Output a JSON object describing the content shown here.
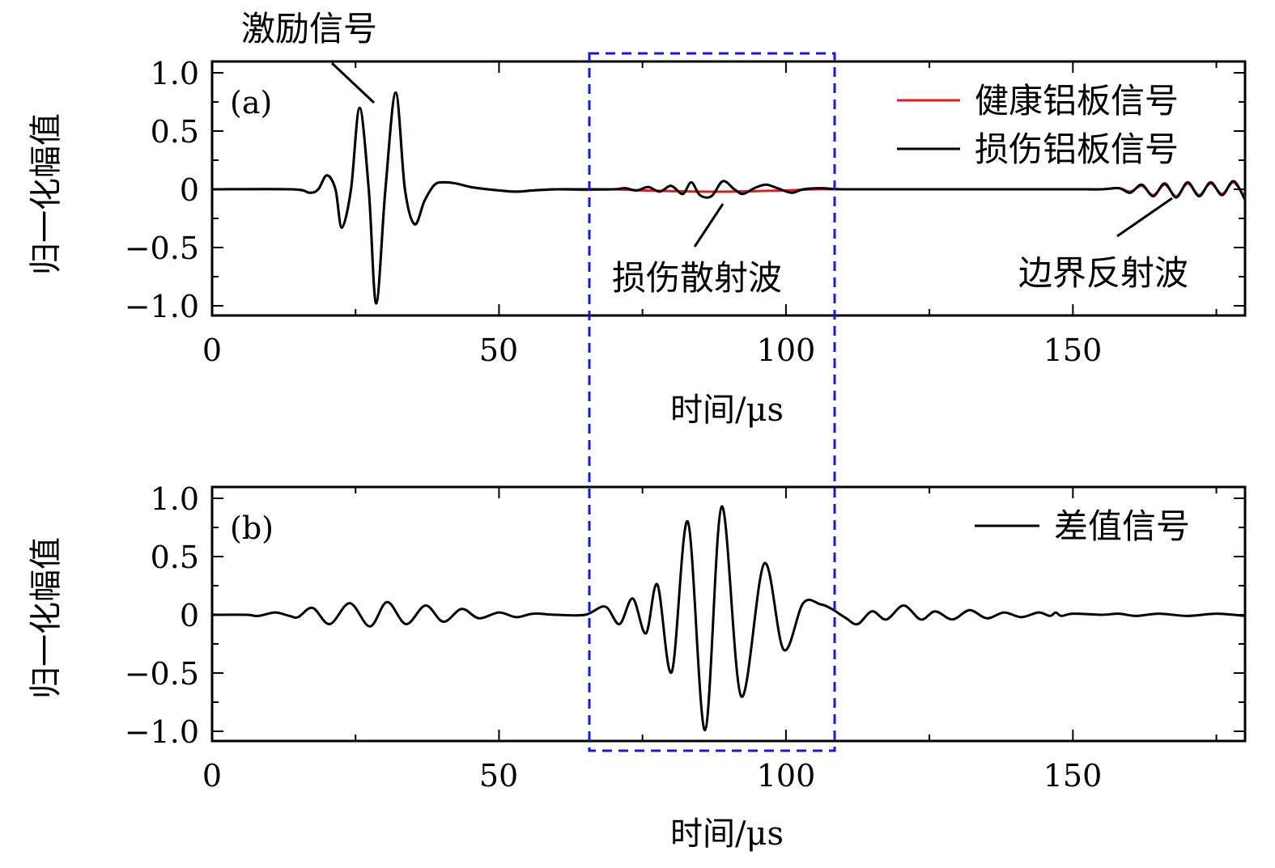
{
  "chart_data": [
    {
      "type": "line",
      "panel_label": "(a)",
      "xlabel": "时间/μs",
      "ylabel": "归一化幅值",
      "xlim": [
        0,
        180
      ],
      "ylim": [
        -1.1,
        1.1
      ],
      "xticks": [
        0,
        50,
        100,
        150
      ],
      "yticks": [
        1.0,
        0.5,
        0,
        -0.5,
        -1.0
      ],
      "ytick_labels": [
        "1.0",
        "0.5",
        "0",
        "−0.5",
        "−1.0"
      ],
      "legend_position": "top-right",
      "series": [
        {
          "name": "健康铝板信号",
          "color": "#d62020",
          "points": [
            [
              0,
              0
            ],
            [
              14,
              0
            ],
            [
              17,
              -0.03
            ],
            [
              18.5,
              0
            ],
            [
              20.0,
              0.12
            ],
            [
              21.5,
              0
            ],
            [
              22.6,
              -0.33
            ],
            [
              24.2,
              0
            ],
            [
              25.7,
              0.7
            ],
            [
              27.3,
              0
            ],
            [
              28.6,
              -0.98
            ],
            [
              30.2,
              0
            ],
            [
              32.0,
              0.83
            ],
            [
              33.6,
              0
            ],
            [
              35.3,
              -0.3
            ],
            [
              37.0,
              -0.1
            ],
            [
              38.8,
              0.04
            ],
            [
              40.5,
              0.06
            ],
            [
              42.5,
              0.05
            ],
            [
              45,
              0.02
            ],
            [
              48,
              0
            ],
            [
              50,
              -0.01
            ],
            [
              53,
              -0.02
            ],
            [
              56,
              -0.01
            ],
            [
              60,
              0
            ],
            [
              65,
              -0.005
            ],
            [
              70,
              0
            ],
            [
              75,
              -0.01
            ],
            [
              80,
              -0.015
            ],
            [
              85,
              -0.02
            ],
            [
              90,
              -0.02
            ],
            [
              95,
              -0.015
            ],
            [
              100,
              -0.01
            ],
            [
              105,
              0
            ],
            [
              110,
              0
            ],
            [
              120,
              0
            ],
            [
              130,
              0
            ],
            [
              140,
              0
            ],
            [
              150,
              0
            ],
            [
              155,
              0
            ],
            [
              158,
              0.01
            ],
            [
              160,
              -0.02
            ],
            [
              162,
              0.03
            ],
            [
              164,
              -0.05
            ],
            [
              166,
              0.04
            ],
            [
              168,
              -0.06
            ],
            [
              170,
              0.05
            ],
            [
              172,
              -0.05
            ],
            [
              174,
              0.05
            ],
            [
              176,
              -0.04
            ],
            [
              178,
              0.06
            ],
            [
              180,
              -0.08
            ]
          ]
        },
        {
          "name": "损伤铝板信号",
          "color": "#000000",
          "points": [
            [
              0,
              0
            ],
            [
              14,
              0
            ],
            [
              17,
              -0.03
            ],
            [
              18.5,
              0
            ],
            [
              20.0,
              0.12
            ],
            [
              21.5,
              0
            ],
            [
              22.6,
              -0.33
            ],
            [
              24.2,
              0
            ],
            [
              25.7,
              0.7
            ],
            [
              27.3,
              0
            ],
            [
              28.6,
              -0.98
            ],
            [
              30.2,
              0
            ],
            [
              32.0,
              0.83
            ],
            [
              33.6,
              0
            ],
            [
              35.3,
              -0.3
            ],
            [
              37.0,
              -0.1
            ],
            [
              38.8,
              0.04
            ],
            [
              40.5,
              0.06
            ],
            [
              42.5,
              0.05
            ],
            [
              45,
              0.02
            ],
            [
              48,
              0
            ],
            [
              50,
              -0.01
            ],
            [
              53,
              -0.02
            ],
            [
              56,
              -0.01
            ],
            [
              60,
              0
            ],
            [
              65,
              0
            ],
            [
              70,
              0
            ],
            [
              72,
              0.01
            ],
            [
              74,
              -0.01
            ],
            [
              76,
              0.02
            ],
            [
              78,
              -0.02
            ],
            [
              80,
              0.03
            ],
            [
              82,
              -0.04
            ],
            [
              83.5,
              0.06
            ],
            [
              85,
              -0.05
            ],
            [
              87,
              -0.06
            ],
            [
              89,
              0.07
            ],
            [
              91,
              0
            ],
            [
              92.5,
              -0.04
            ],
            [
              94.5,
              0.01
            ],
            [
              96.5,
              0.04
            ],
            [
              98.5,
              0.01
            ],
            [
              101,
              -0.03
            ],
            [
              103,
              0
            ],
            [
              106,
              0.01
            ],
            [
              110,
              0
            ],
            [
              120,
              0
            ],
            [
              130,
              0
            ],
            [
              140,
              0
            ],
            [
              150,
              0
            ],
            [
              155,
              0
            ],
            [
              158,
              0.01
            ],
            [
              160,
              -0.03
            ],
            [
              162,
              0.04
            ],
            [
              164,
              -0.06
            ],
            [
              166,
              0.05
            ],
            [
              168,
              -0.07
            ],
            [
              170,
              0.06
            ],
            [
              172,
              -0.06
            ],
            [
              174,
              0.06
            ],
            [
              176,
              -0.05
            ],
            [
              178,
              0.07
            ],
            [
              180,
              -0.09
            ]
          ]
        }
      ],
      "annotations": [
        "激励信号",
        "损伤散射波",
        "边界反射波"
      ]
    },
    {
      "type": "line",
      "panel_label": "(b)",
      "xlabel": "时间/μs",
      "ylabel": "归一化幅值",
      "xlim": [
        0,
        180
      ],
      "ylim": [
        -1.1,
        1.1
      ],
      "xticks": [
        0,
        50,
        100,
        150
      ],
      "yticks": [
        1.0,
        0.5,
        0,
        -0.5,
        -1.0
      ],
      "ytick_labels": [
        "1.0",
        "0.5",
        "0",
        "−0.5",
        "−1.0"
      ],
      "legend_position": "top-right",
      "series": [
        {
          "name": "差值信号",
          "color": "#000000",
          "points": [
            [
              0,
              0
            ],
            [
              6,
              0
            ],
            [
              8,
              -0.01
            ],
            [
              11,
              0.02
            ],
            [
              13.5,
              -0.01
            ],
            [
              15,
              -0.02
            ],
            [
              17.5,
              0.06
            ],
            [
              20.5,
              -0.08
            ],
            [
              24,
              0.1
            ],
            [
              27.5,
              -0.1
            ],
            [
              30.5,
              0.11
            ],
            [
              33.8,
              -0.08
            ],
            [
              37.2,
              0.08
            ],
            [
              40.3,
              -0.06
            ],
            [
              43.5,
              0.05
            ],
            [
              46.5,
              -0.03
            ],
            [
              50,
              0.02
            ],
            [
              53,
              -0.02
            ],
            [
              56,
              0.01
            ],
            [
              60,
              0
            ],
            [
              65,
              0
            ],
            [
              68.5,
              0.07
            ],
            [
              71,
              -0.08
            ],
            [
              73.3,
              0.14
            ],
            [
              75.6,
              -0.16
            ],
            [
              77.6,
              0.26
            ],
            [
              80.1,
              -0.49
            ],
            [
              82.9,
              0.8
            ],
            [
              85.9,
              -0.99
            ],
            [
              88.8,
              0.93
            ],
            [
              92.2,
              -0.7
            ],
            [
              96.2,
              0.44
            ],
            [
              99.6,
              -0.3
            ],
            [
              103,
              0.1
            ],
            [
              106,
              0.09
            ],
            [
              108,
              0.05
            ],
            [
              110.5,
              -0.03
            ],
            [
              112.5,
              -0.08
            ],
            [
              115,
              0.03
            ],
            [
              117.5,
              -0.04
            ],
            [
              120.5,
              0.08
            ],
            [
              123.5,
              -0.04
            ],
            [
              126,
              0.03
            ],
            [
              129,
              -0.04
            ],
            [
              132,
              0.04
            ],
            [
              135,
              -0.03
            ],
            [
              138,
              0.02
            ],
            [
              141,
              -0.02
            ],
            [
              144,
              0.02
            ],
            [
              146,
              -0.01
            ],
            [
              147,
              0.02
            ],
            [
              148,
              -0.01
            ],
            [
              150,
              0.01
            ],
            [
              155,
              0
            ],
            [
              158,
              0.01
            ],
            [
              161,
              -0.01
            ],
            [
              165,
              0.01
            ],
            [
              170,
              -0.01
            ],
            [
              175,
              0.01
            ],
            [
              180,
              -0.01
            ]
          ]
        }
      ]
    }
  ]
}
